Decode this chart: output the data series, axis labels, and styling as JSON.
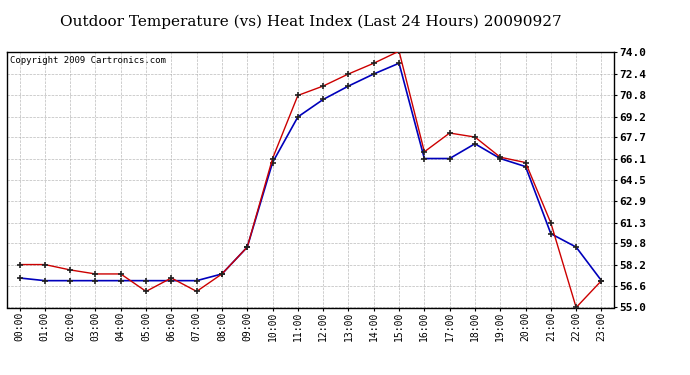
{
  "title": "Outdoor Temperature (vs) Heat Index (Last 24 Hours) 20090927",
  "copyright": "Copyright 2009 Cartronics.com",
  "x_labels": [
    "00:00",
    "01:00",
    "02:00",
    "03:00",
    "04:00",
    "05:00",
    "06:00",
    "07:00",
    "08:00",
    "09:00",
    "10:00",
    "11:00",
    "12:00",
    "13:00",
    "14:00",
    "15:00",
    "16:00",
    "17:00",
    "18:00",
    "19:00",
    "20:00",
    "21:00",
    "22:00",
    "23:00"
  ],
  "temp_red": [
    58.2,
    58.2,
    57.8,
    57.5,
    57.5,
    56.2,
    57.2,
    56.2,
    57.5,
    59.5,
    66.1,
    70.8,
    71.5,
    72.4,
    73.2,
    74.1,
    66.6,
    68.0,
    67.7,
    66.2,
    65.8,
    61.3,
    55.0,
    57.0
  ],
  "heat_blue": [
    57.2,
    57.0,
    57.0,
    57.0,
    57.0,
    57.0,
    57.0,
    57.0,
    57.5,
    59.5,
    65.8,
    69.2,
    70.5,
    71.5,
    72.4,
    73.2,
    66.1,
    66.1,
    67.2,
    66.1,
    65.5,
    60.5,
    59.5,
    57.0
  ],
  "ylim_min": 55.0,
  "ylim_max": 74.0,
  "yticks": [
    55.0,
    56.6,
    58.2,
    59.8,
    61.3,
    62.9,
    64.5,
    66.1,
    67.7,
    69.2,
    70.8,
    72.4,
    74.0
  ],
  "red_color": "#cc0000",
  "blue_color": "#0000bb",
  "bg_color": "#ffffff",
  "grid_color": "#aaaaaa",
  "title_fontsize": 11,
  "copyright_fontsize": 6.5,
  "tick_fontsize": 7,
  "ytick_fontsize": 8
}
